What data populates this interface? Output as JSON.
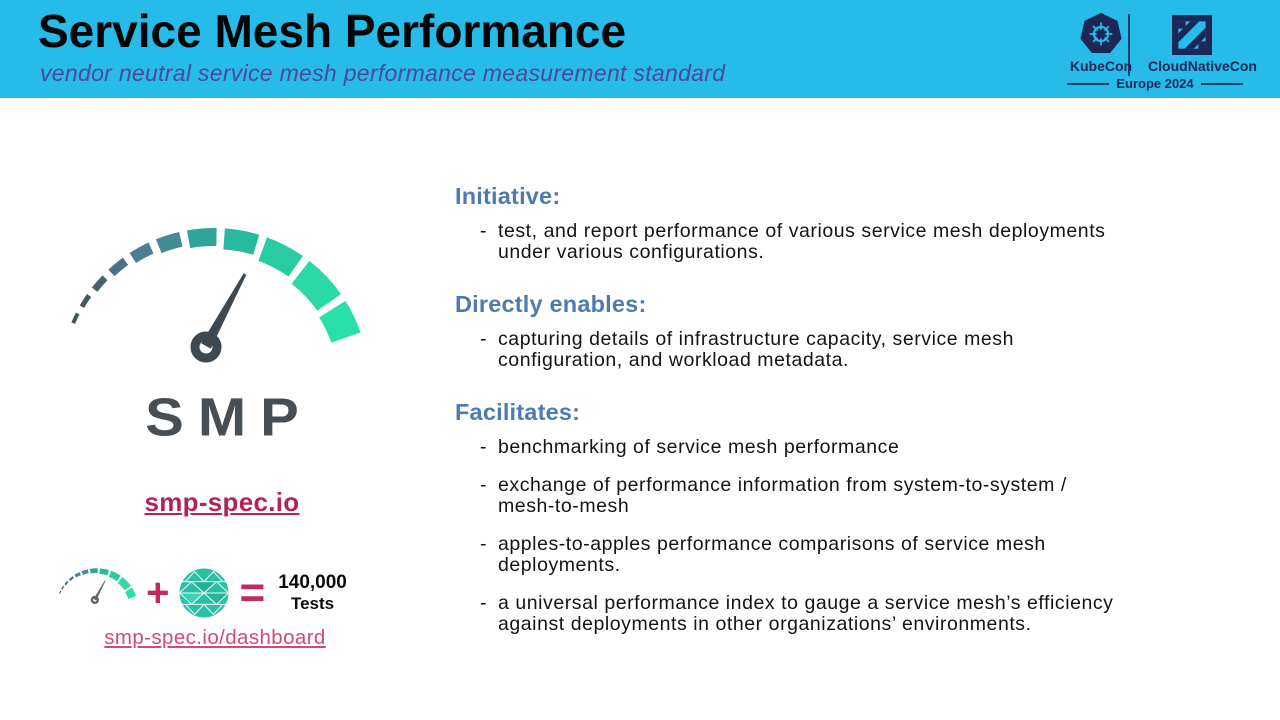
{
  "header": {
    "title": "Service Mesh Performance",
    "subtitle": "vendor neutral service mesh performance measurement standard"
  },
  "conference": {
    "kubecon_label": "KubeCon",
    "cloudnativecon_label": "CloudNativeCon",
    "edition": "Europe 2024"
  },
  "left_panel": {
    "logo_wordmark": "SMP",
    "spec_link": "smp-spec.io",
    "dashboard_link": "smp-spec.io/dashboard",
    "formula": {
      "plus": "+",
      "equals": "=",
      "tests_count": "140,000",
      "tests_label": "Tests"
    }
  },
  "sections": [
    {
      "heading": "Initiative:",
      "bullets": [
        "test, and report performance of various service mesh deployments under various configurations."
      ]
    },
    {
      "heading": "Directly enables:",
      "bullets": [
        "capturing details of infrastructure capacity, service mesh configuration, and workload metadata."
      ]
    },
    {
      "heading": "Facilitates:",
      "bullets": [
        "benchmarking of service mesh performance",
        "exchange of performance information from system-to-system / mesh-to-mesh",
        "apples-to-apples performance comparisons of service mesh deployments.",
        "a universal performance index to gauge a service mesh’s efficiency against deployments in other organizations’ environments."
      ]
    }
  ],
  "ui": {
    "bullet_char": "-"
  },
  "colors": {
    "header_bg": "#27BBEA",
    "subtitle_text": "#4D4899",
    "navy": "#1C2757",
    "section_heading": "#4C7BB4",
    "link_primary": "#B2235A",
    "link_secondary": "#D44A70",
    "operator": "#C22A57",
    "smp_wordmark": "#474F55",
    "gauge_needle": "#3D4850",
    "mesh_teal": "#2BC0A3",
    "gauge_segments": [
      "#44565F",
      "#44565F",
      "#47616D",
      "#4A7187",
      "#4B7D95",
      "#418C95",
      "#2FA597",
      "#27BA9C",
      "#29CCA2",
      "#2BD9A6",
      "#2BDFAB"
    ]
  }
}
